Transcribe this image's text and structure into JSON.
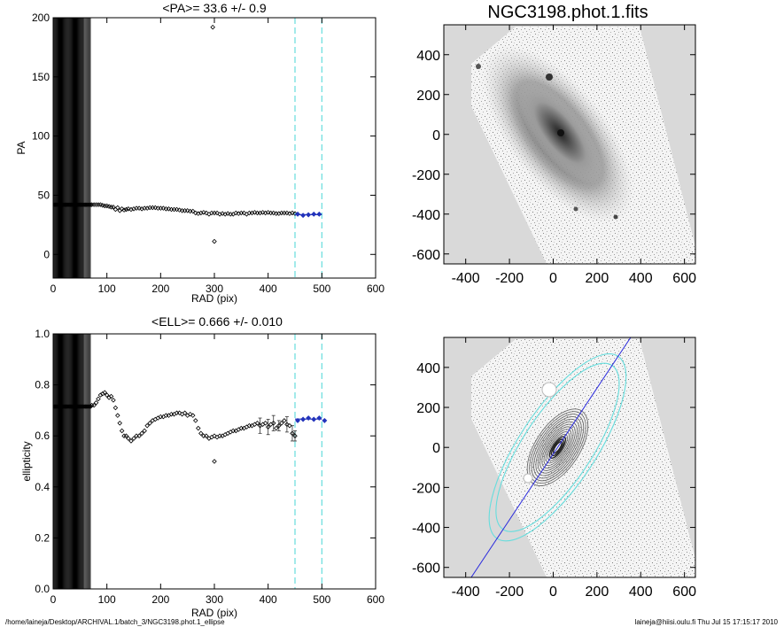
{
  "figure": {
    "footer_path": "/home/laineja/Desktop/ARCHIVAL.1/batch_3/NGC3198.phot.1_ellipse",
    "footer_user_date": "laineja@hiisi.oulu.fi  Thu Jul 15 17:15:17 2010",
    "colors": {
      "axis": "#000000",
      "marker": "#000000",
      "fit_marker": "#2233bb",
      "cyan_guide": "#66dddd",
      "image_background": "#d9d9d9",
      "blue_line": "#2b2bdd"
    }
  },
  "chart_data": [
    {
      "id": "pa",
      "type": "scatter",
      "title": "<PA>=  33.6 +/-   0.9",
      "xlabel": "RAD (pix)",
      "ylabel": "PA",
      "xlim": [
        0,
        600
      ],
      "ylim": [
        -20,
        200
      ],
      "xticks": [
        0,
        100,
        200,
        300,
        400,
        500,
        600
      ],
      "yticks": [
        0,
        50,
        100,
        150,
        200
      ],
      "vlines": [
        450,
        500
      ],
      "vlines_style": "dashed",
      "inner_radius_max": 70,
      "inner_value": 42,
      "mean_value": 33.6,
      "error_value": 0.9,
      "points": [
        [
          72,
          42
        ],
        [
          76,
          42
        ],
        [
          80,
          42
        ],
        [
          84,
          42
        ],
        [
          88,
          42
        ],
        [
          92,
          41.5
        ],
        [
          96,
          41
        ],
        [
          100,
          41
        ],
        [
          104,
          40.5
        ],
        [
          108,
          40
        ],
        [
          112,
          40
        ],
        [
          116,
          38
        ],
        [
          120,
          39.5
        ],
        [
          124,
          37
        ],
        [
          128,
          38.5
        ],
        [
          132,
          37.5
        ],
        [
          136,
          38
        ],
        [
          140,
          38.5
        ],
        [
          145,
          38
        ],
        [
          150,
          38.5
        ],
        [
          155,
          39
        ],
        [
          160,
          39
        ],
        [
          165,
          38.5
        ],
        [
          170,
          39
        ],
        [
          175,
          39
        ],
        [
          180,
          39.5
        ],
        [
          185,
          39.5
        ],
        [
          190,
          39.5
        ],
        [
          195,
          39
        ],
        [
          200,
          39
        ],
        [
          205,
          39
        ],
        [
          210,
          38.5
        ],
        [
          215,
          38.5
        ],
        [
          220,
          38
        ],
        [
          225,
          38
        ],
        [
          230,
          38
        ],
        [
          235,
          37.5
        ],
        [
          240,
          37
        ],
        [
          245,
          37
        ],
        [
          250,
          37
        ],
        [
          255,
          36.5
        ],
        [
          260,
          36.5
        ],
        [
          265,
          35
        ],
        [
          270,
          34.5
        ],
        [
          275,
          35
        ],
        [
          280,
          35.5
        ],
        [
          285,
          35
        ],
        [
          290,
          34
        ],
        [
          295,
          35
        ],
        [
          300,
          35
        ],
        [
          305,
          35
        ],
        [
          310,
          34
        ],
        [
          315,
          34.5
        ],
        [
          320,
          34
        ],
        [
          325,
          34.5
        ],
        [
          330,
          34
        ],
        [
          335,
          34
        ],
        [
          340,
          35
        ],
        [
          345,
          34.5
        ],
        [
          350,
          35
        ],
        [
          355,
          35
        ],
        [
          360,
          34
        ],
        [
          365,
          35
        ],
        [
          370,
          35
        ],
        [
          375,
          35.5
        ],
        [
          380,
          35
        ],
        [
          385,
          35
        ],
        [
          390,
          35.5
        ],
        [
          395,
          35
        ],
        [
          400,
          35.5
        ],
        [
          405,
          35
        ],
        [
          410,
          35
        ],
        [
          415,
          34.5
        ],
        [
          420,
          34.5
        ],
        [
          425,
          35
        ],
        [
          430,
          35
        ],
        [
          435,
          35
        ],
        [
          440,
          34.5
        ],
        [
          445,
          35
        ],
        [
          450,
          34.5
        ]
      ],
      "fit_points": [
        [
          455,
          34
        ],
        [
          465,
          33
        ],
        [
          475,
          33.5
        ],
        [
          485,
          34
        ],
        [
          495,
          34
        ]
      ],
      "outliers": [
        [
          297,
          192
        ],
        [
          300,
          11
        ]
      ]
    },
    {
      "id": "ell",
      "type": "scatter",
      "title": "<ELL>= 0.666 +/-  0.010",
      "xlabel": "RAD (pix)",
      "ylabel": "ellipticity",
      "xlim": [
        0,
        600
      ],
      "ylim": [
        0,
        1
      ],
      "xticks": [
        0,
        100,
        200,
        300,
        400,
        500,
        600
      ],
      "yticks": [
        0.0,
        0.2,
        0.4,
        0.6,
        0.8,
        1.0
      ],
      "vlines": [
        450,
        500
      ],
      "vlines_style": "dashed",
      "inner_radius_max": 70,
      "inner_value": 0.715,
      "mean_value": 0.666,
      "error_value": 0.01,
      "points": [
        [
          72,
          0.72
        ],
        [
          76,
          0.72
        ],
        [
          80,
          0.73
        ],
        [
          84,
          0.745
        ],
        [
          88,
          0.76
        ],
        [
          92,
          0.765
        ],
        [
          96,
          0.77
        ],
        [
          100,
          0.76
        ],
        [
          104,
          0.75
        ],
        [
          108,
          0.755
        ],
        [
          112,
          0.74
        ],
        [
          116,
          0.71
        ],
        [
          120,
          0.68
        ],
        [
          124,
          0.65
        ],
        [
          128,
          0.62
        ],
        [
          132,
          0.6
        ],
        [
          136,
          0.6
        ],
        [
          140,
          0.59
        ],
        [
          145,
          0.58
        ],
        [
          150,
          0.59
        ],
        [
          155,
          0.6
        ],
        [
          160,
          0.6
        ],
        [
          165,
          0.61
        ],
        [
          170,
          0.62
        ],
        [
          175,
          0.64
        ],
        [
          180,
          0.65
        ],
        [
          185,
          0.66
        ],
        [
          190,
          0.665
        ],
        [
          195,
          0.67
        ],
        [
          200,
          0.675
        ],
        [
          205,
          0.675
        ],
        [
          210,
          0.68
        ],
        [
          215,
          0.68
        ],
        [
          220,
          0.685
        ],
        [
          225,
          0.685
        ],
        [
          230,
          0.69
        ],
        [
          235,
          0.69
        ],
        [
          240,
          0.685
        ],
        [
          245,
          0.69
        ],
        [
          250,
          0.68
        ],
        [
          255,
          0.685
        ],
        [
          260,
          0.68
        ],
        [
          265,
          0.66
        ],
        [
          270,
          0.63
        ],
        [
          275,
          0.61
        ],
        [
          280,
          0.6
        ],
        [
          285,
          0.6
        ],
        [
          290,
          0.59
        ],
        [
          295,
          0.595
        ],
        [
          300,
          0.6
        ],
        [
          305,
          0.595
        ],
        [
          310,
          0.6
        ],
        [
          315,
          0.6
        ],
        [
          320,
          0.605
        ],
        [
          325,
          0.61
        ],
        [
          330,
          0.615
        ],
        [
          335,
          0.62
        ],
        [
          340,
          0.62
        ],
        [
          345,
          0.625
        ],
        [
          350,
          0.63
        ],
        [
          355,
          0.63
        ],
        [
          360,
          0.635
        ],
        [
          365,
          0.64
        ],
        [
          370,
          0.64
        ],
        [
          375,
          0.645
        ],
        [
          380,
          0.65
        ],
        [
          385,
          0.64
        ],
        [
          390,
          0.645
        ],
        [
          395,
          0.65
        ],
        [
          400,
          0.635
        ],
        [
          405,
          0.645
        ],
        [
          410,
          0.65
        ],
        [
          415,
          0.63
        ],
        [
          420,
          0.64
        ],
        [
          425,
          0.65
        ],
        [
          430,
          0.66
        ],
        [
          435,
          0.645
        ],
        [
          440,
          0.64
        ],
        [
          445,
          0.61
        ],
        [
          450,
          0.6
        ]
      ],
      "errors": [
        [
          385,
          0.03
        ],
        [
          400,
          0.03
        ],
        [
          410,
          0.03
        ],
        [
          420,
          0.02
        ],
        [
          435,
          0.03
        ],
        [
          445,
          0.03
        ],
        [
          450,
          0.02
        ]
      ],
      "fit_points": [
        [
          455,
          0.66
        ],
        [
          465,
          0.665
        ],
        [
          475,
          0.67
        ],
        [
          485,
          0.665
        ],
        [
          495,
          0.67
        ],
        [
          505,
          0.66
        ]
      ],
      "outliers": [
        [
          300,
          0.5
        ]
      ]
    },
    {
      "id": "image",
      "type": "heatmap",
      "title": "NGC3198.phot.1.fits",
      "xlim": [
        -500,
        650
      ],
      "ylim": [
        -650,
        550
      ],
      "xticks": [
        -400,
        -200,
        0,
        200,
        400,
        600
      ],
      "yticks": [
        -600,
        -400,
        -200,
        0,
        200,
        400
      ],
      "xtick_labels": [
        "-400",
        "-200",
        "0",
        "200",
        "400",
        "600"
      ],
      "ytick_labels": [
        "-600",
        "-400",
        "-200",
        "0",
        "200",
        "400"
      ]
    },
    {
      "id": "contours",
      "type": "heatmap",
      "title": "",
      "xlim": [
        -500,
        650
      ],
      "ylim": [
        -650,
        550
      ],
      "xticks": [
        -400,
        -200,
        0,
        200,
        400,
        600
      ],
      "yticks": [
        -600,
        -400,
        -200,
        0,
        200,
        400
      ],
      "xtick_labels": [
        "-400",
        "-200",
        "0",
        "200",
        "400",
        "600"
      ],
      "ytick_labels": [
        "-600",
        "-400",
        "-200",
        "0",
        "200",
        "400"
      ],
      "position_angle_deg": 33.6,
      "ellipticity": 0.666,
      "cyan_radii": [
        450,
        500
      ]
    }
  ]
}
